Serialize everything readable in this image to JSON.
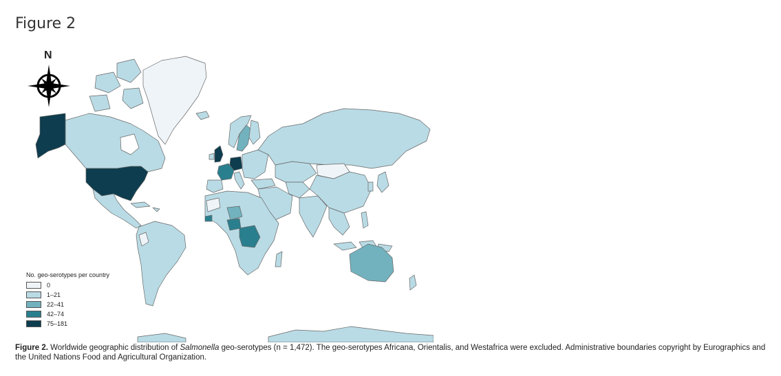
{
  "figure": {
    "title": "Figure 2"
  },
  "compass": {
    "north_label": "N",
    "icon": "compass-rose-icon"
  },
  "legend": {
    "title": "No. geo-serotypes per country",
    "items": [
      {
        "label": "0",
        "color": "#eef4f8"
      },
      {
        "label": "1–21",
        "color": "#b9dbe5"
      },
      {
        "label": "22–41",
        "color": "#72b2be"
      },
      {
        "label": "42–74",
        "color": "#2a7f8e"
      },
      {
        "label": "75–181",
        "color": "#0d3d4e"
      }
    ]
  },
  "caption": {
    "label": "Figure 2.",
    "pre": " Worldwide geographic distribution of ",
    "italic": "Salmonella",
    "post": " geo-serotypes (n = 1,472). The geo-serotypes Africana, Orientalis, and Westafrica were excluded. Administrative boundaries copyright by Eurographics and the United Nations Food and Agricultural Organization."
  },
  "map": {
    "border_color": "#666666",
    "countries": [
      {
        "name": "Greenland",
        "class": "0"
      },
      {
        "name": "Alaska",
        "class": "75–181"
      },
      {
        "name": "Canada",
        "class": "1–21"
      },
      {
        "name": "United States",
        "class": "75–181"
      },
      {
        "name": "Mexico",
        "class": "1–21"
      },
      {
        "name": "South America",
        "class": "1–21"
      },
      {
        "name": "Europe",
        "class": "1–21"
      },
      {
        "name": "United Kingdom",
        "class": "75–181"
      },
      {
        "name": "Germany",
        "class": "75–181"
      },
      {
        "name": "France",
        "class": "42–74"
      },
      {
        "name": "Sweden",
        "class": "22–41"
      },
      {
        "name": "Russia",
        "class": "1–21"
      },
      {
        "name": "Kazakhstan",
        "class": "1–21"
      },
      {
        "name": "Mongolia",
        "class": "0"
      },
      {
        "name": "China",
        "class": "1–21"
      },
      {
        "name": "India",
        "class": "1–21"
      },
      {
        "name": "Middle East",
        "class": "1–21"
      },
      {
        "name": "Africa",
        "class": "1–21"
      },
      {
        "name": "Nigeria",
        "class": "42–74"
      },
      {
        "name": "Niger",
        "class": "22–41"
      },
      {
        "name": "DR Congo",
        "class": "42–74"
      },
      {
        "name": "Australia",
        "class": "22–41"
      },
      {
        "name": "Southeast Asia",
        "class": "1–21"
      },
      {
        "name": "Japan",
        "class": "1–21"
      },
      {
        "name": "Antarctica",
        "class": "1–21"
      }
    ]
  }
}
